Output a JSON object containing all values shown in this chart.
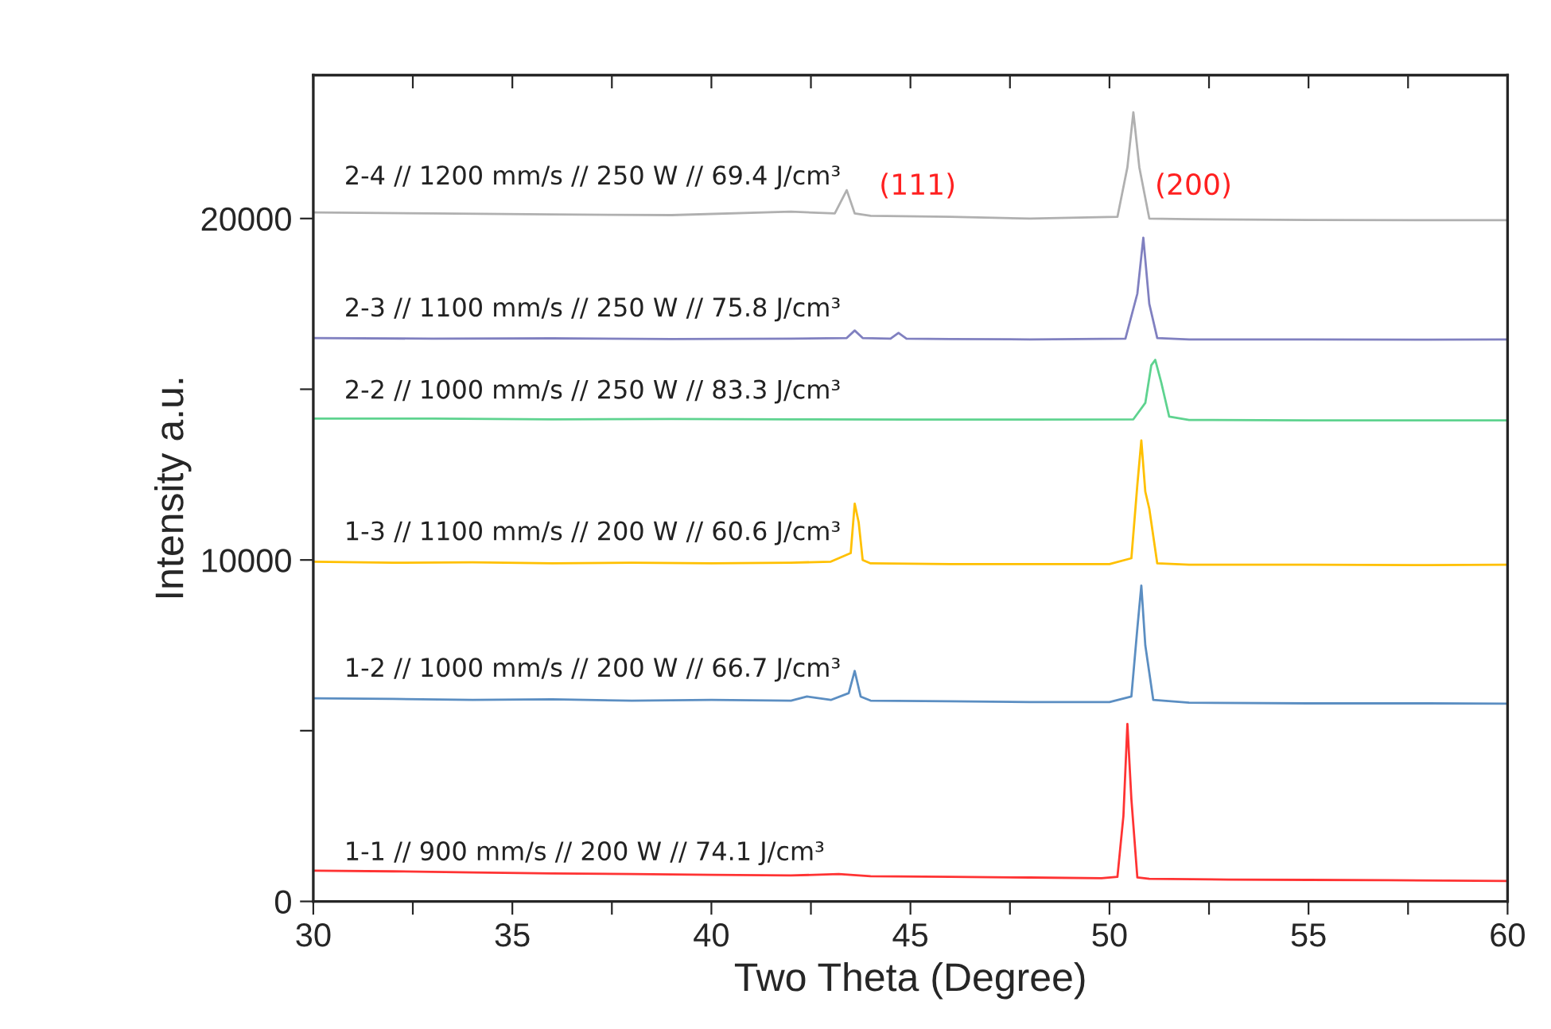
{
  "chart_data": {
    "type": "line",
    "xlabel": "Two Theta (Degree)",
    "ylabel": "Intensity a.u.",
    "xlim": [
      30,
      60
    ],
    "ylim": [
      0,
      24200
    ],
    "xticks": [
      30,
      {
        "value": 32.5,
        "label": null
      },
      35,
      {
        "value": 37.5,
        "label": null
      },
      40,
      {
        "value": 42.5,
        "label": null
      },
      45,
      {
        "value": 47.5,
        "label": null
      },
      50,
      {
        "value": 52.5,
        "label": null
      },
      55,
      {
        "value": 57.5,
        "label": null
      },
      60
    ],
    "yticks": [
      0,
      {
        "value": 5000,
        "label": null
      },
      10000,
      {
        "value": 15000,
        "label": null
      },
      20000
    ],
    "grid": false,
    "legend": false,
    "marker": "none",
    "line_style": "solid",
    "annotations": [
      "(111)",
      "(200)"
    ],
    "series": [
      {
        "name": "1-1 // 900 mm/s // 200 W // 74.1 J/cm³",
        "color": "#ff3333",
        "x": [
          30,
          32,
          34,
          36,
          38,
          40,
          42,
          43.2,
          44,
          46,
          48,
          49.8,
          50.2,
          50.35,
          50.45,
          50.55,
          50.7,
          51,
          53,
          55,
          57,
          60
        ],
        "values": [
          900,
          880,
          850,
          820,
          800,
          780,
          760,
          800,
          740,
          720,
          700,
          680,
          720,
          2500,
          5200,
          3000,
          700,
          660,
          640,
          630,
          620,
          600
        ]
      },
      {
        "name": "1-2 // 1000 mm/s // 200 W // 66.7 J/cm³",
        "color": "#5b8ec2",
        "x": [
          30,
          32,
          34,
          36,
          38,
          40,
          42,
          42.4,
          43,
          43.45,
          43.6,
          43.75,
          44,
          46,
          48,
          50,
          50.55,
          50.7,
          50.8,
          50.9,
          51.1,
          52,
          55,
          58,
          60
        ],
        "values": [
          5950,
          5930,
          5900,
          5920,
          5880,
          5900,
          5880,
          6000,
          5900,
          6100,
          6750,
          6000,
          5880,
          5860,
          5840,
          5840,
          6000,
          8000,
          9250,
          7500,
          5900,
          5820,
          5800,
          5800,
          5790
        ]
      },
      {
        "name": "1-3 // 1100 mm/s // 200 W // 60.6 J/cm³",
        "color": "#ffc000",
        "x": [
          30,
          32,
          34,
          36,
          38,
          40,
          42,
          43,
          43.5,
          43.6,
          43.7,
          43.8,
          44,
          46,
          48,
          50,
          50.55,
          50.7,
          50.8,
          50.9,
          51.0,
          51.2,
          52,
          55,
          58,
          60
        ],
        "values": [
          9950,
          9920,
          9930,
          9900,
          9920,
          9900,
          9920,
          9950,
          10200,
          11650,
          11100,
          10000,
          9900,
          9880,
          9880,
          9880,
          10050,
          12200,
          13500,
          12000,
          11500,
          9900,
          9860,
          9860,
          9850,
          9860
        ]
      },
      {
        "name": "2-2 // 1000 mm/s // 250 W // 83.3 J/cm³",
        "color": "#5ed38f",
        "x": [
          30,
          33,
          36,
          39,
          42,
          45,
          48,
          50.6,
          50.9,
          51.05,
          51.15,
          51.3,
          51.5,
          52,
          55,
          58,
          60
        ],
        "values": [
          14140,
          14140,
          14120,
          14130,
          14120,
          14110,
          14110,
          14120,
          14600,
          15700,
          15860,
          15200,
          14200,
          14100,
          14090,
          14090,
          14090
        ]
      },
      {
        "name": "2-3 // 1100 mm/s // 250 W // 75.8 J/cm³",
        "color": "#8080c0",
        "x": [
          30,
          33,
          36,
          39,
          42,
          43.4,
          43.6,
          43.8,
          44.5,
          44.7,
          44.9,
          46,
          48,
          50.4,
          50.7,
          50.85,
          51.0,
          51.2,
          52,
          55,
          58,
          60
        ],
        "values": [
          16500,
          16480,
          16490,
          16470,
          16480,
          16500,
          16720,
          16500,
          16480,
          16650,
          16480,
          16470,
          16460,
          16480,
          17800,
          19440,
          17500,
          16500,
          16460,
          16460,
          16450,
          16460
        ]
      },
      {
        "name": "2-4 // 1200 mm/s // 250 W // 69.4 J/cm³",
        "color": "#b0b0b0",
        "x": [
          30,
          33,
          36,
          39,
          42,
          43.1,
          43.4,
          43.6,
          44,
          46,
          48,
          50.2,
          50.45,
          50.6,
          50.75,
          51,
          52,
          55,
          58,
          60
        ],
        "values": [
          20180,
          20150,
          20120,
          20100,
          20200,
          20150,
          20830,
          20150,
          20080,
          20050,
          20000,
          20050,
          21500,
          23110,
          21500,
          20000,
          19980,
          19960,
          19950,
          19950
        ]
      }
    ]
  }
}
